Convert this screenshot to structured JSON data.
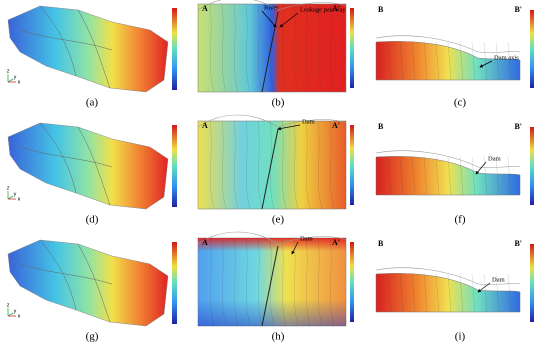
{
  "panels": [
    {
      "label": "(a)",
      "axis_labels": [
        "z",
        "y",
        "x"
      ]
    },
    {
      "label": "(b)",
      "section_start": "A",
      "section_end": "A'",
      "annotations": [
        "River",
        "Leakage passway"
      ]
    },
    {
      "label": "(c)",
      "section_start": "B",
      "section_end": "B'",
      "annotations": [
        "Dam axis"
      ]
    },
    {
      "label": "(d)",
      "axis_labels": [
        "z",
        "y",
        "x"
      ]
    },
    {
      "label": "(e)",
      "section_start": "A",
      "section_end": "A'",
      "annotations": [
        "Dam"
      ]
    },
    {
      "label": "(f)",
      "section_start": "B",
      "section_end": "B'",
      "annotations": [
        "Dam"
      ]
    },
    {
      "label": "(g)",
      "axis_labels": [
        "z",
        "y",
        "x"
      ]
    },
    {
      "label": "(h)",
      "section_start": "A",
      "section_end": "A'",
      "annotations": [
        "Dam"
      ]
    },
    {
      "label": "(i)",
      "section_start": "B",
      "section_end": "B'",
      "annotations": [
        "Dam"
      ]
    }
  ]
}
